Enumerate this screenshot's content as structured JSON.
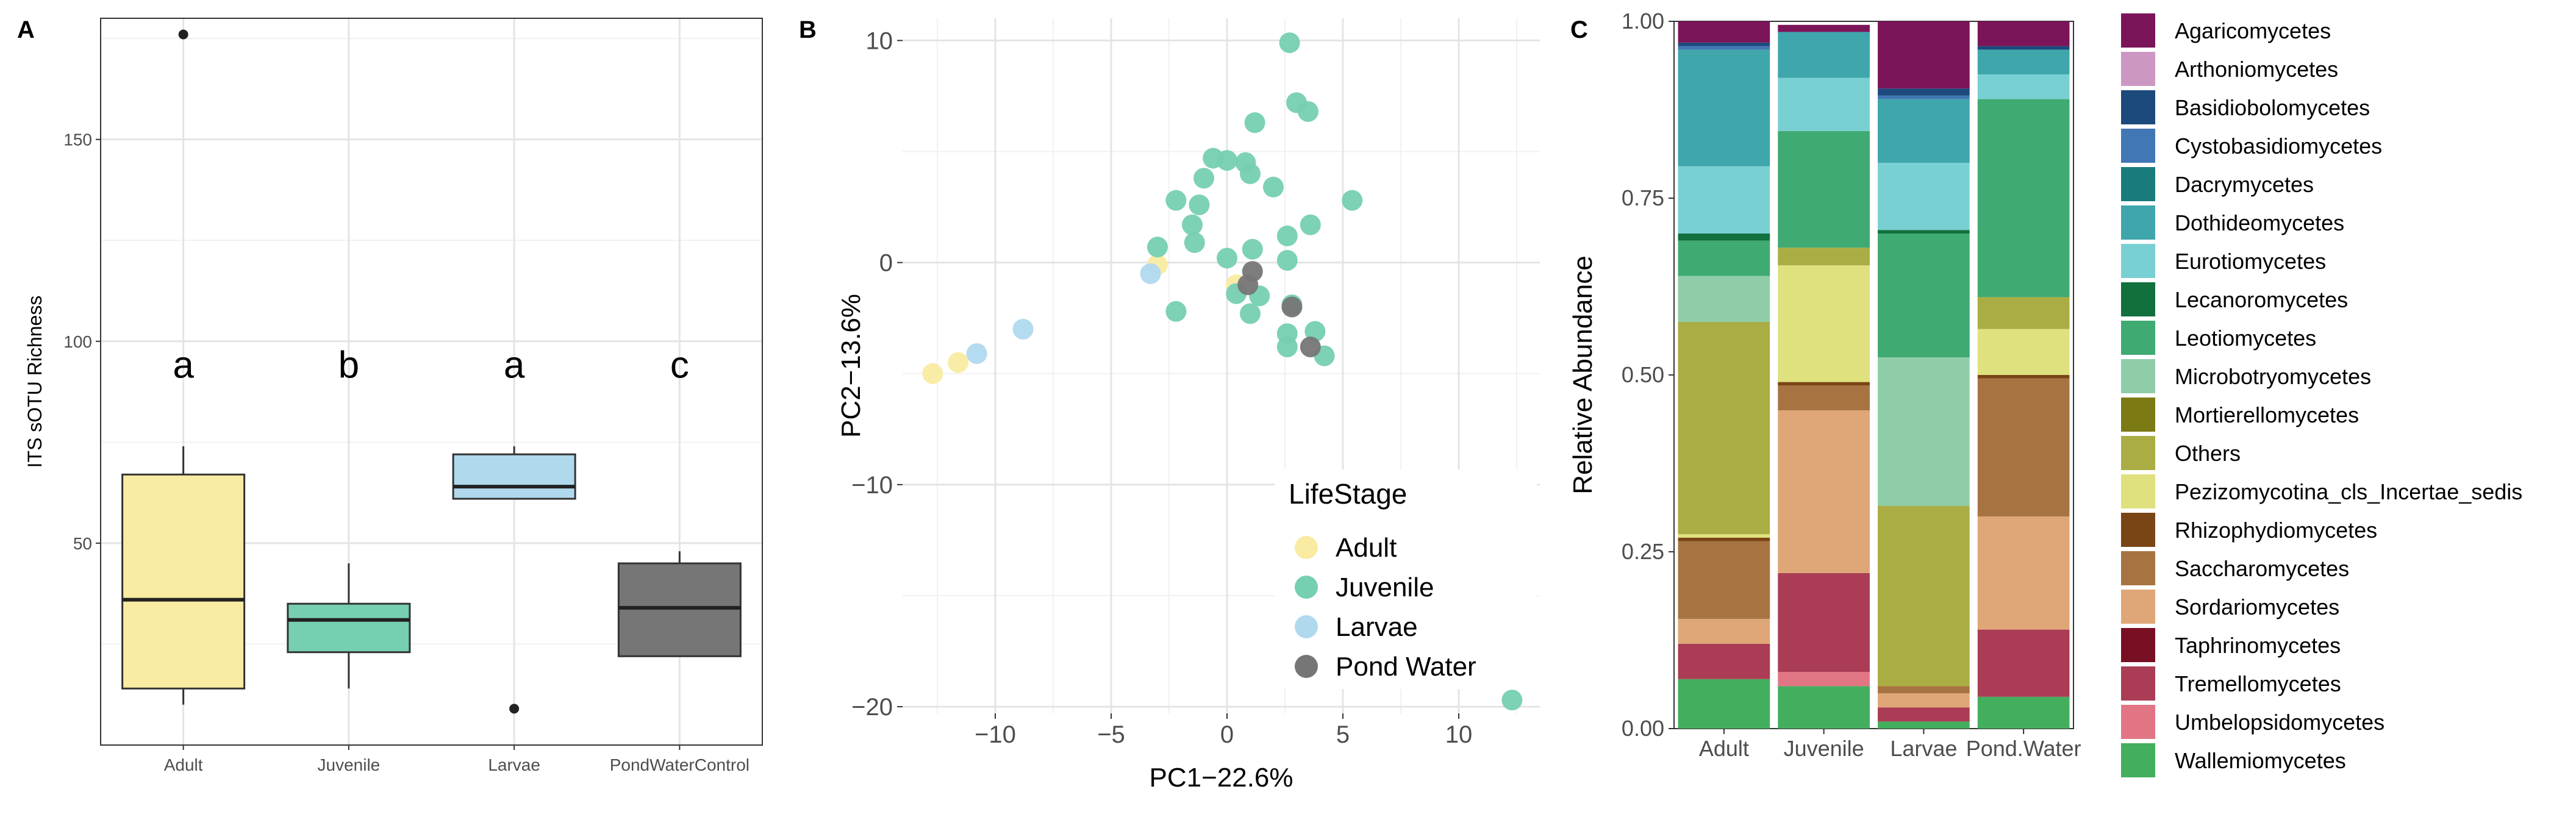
{
  "panels": {
    "a": {
      "label": "A"
    },
    "b": {
      "label": "B"
    },
    "c": {
      "label": "C"
    }
  },
  "colors": {
    "Adult": "#f9eba2",
    "Juvenile": "#76cfb1",
    "Larvae": "#b0d9ee",
    "PondWaterControl": "#767676",
    "Pond Water": "#767676"
  },
  "chart_data": [
    {
      "id": "A",
      "type": "box",
      "ylabel": "ITS sOTU Richness",
      "xlabel": "",
      "ylim": [
        0,
        180
      ],
      "yticks": [
        50,
        100,
        150
      ],
      "categories": [
        "Adult",
        "Juvenile",
        "Larvae",
        "PondWaterControl"
      ],
      "boxes": [
        {
          "name": "Adult",
          "whisker_low": 10,
          "q1": 14,
          "median": 36,
          "q3": 67,
          "whisker_high": 74,
          "outliers": [
            176
          ],
          "letter": "a"
        },
        {
          "name": "Juvenile",
          "whisker_low": 14,
          "q1": 23,
          "median": 31,
          "q3": 35,
          "whisker_high": 45,
          "outliers": [],
          "letter": "b"
        },
        {
          "name": "Larvae",
          "whisker_low": 61,
          "q1": 61,
          "median": 64,
          "q3": 72,
          "whisker_high": 74,
          "outliers": [
            9
          ],
          "letter": "a"
        },
        {
          "name": "PondWaterControl",
          "whisker_low": 22,
          "q1": 22,
          "median": 34,
          "q3": 45,
          "whisker_high": 48,
          "outliers": [],
          "letter": "c"
        }
      ]
    },
    {
      "id": "B",
      "type": "scatter",
      "xlabel": "PC1−22.6%",
      "ylabel": "PC2−13.6%",
      "xlim": [
        -14,
        13.5
      ],
      "ylim": [
        -20.3,
        11
      ],
      "xticks": [
        -10,
        -5,
        0,
        5,
        10
      ],
      "yticks": [
        -20,
        -10,
        0,
        10
      ],
      "legend": {
        "title": "LifeStage",
        "position": "bottom-right",
        "entries": [
          "Adult",
          "Juvenile",
          "Larvae",
          "Pond Water"
        ]
      },
      "series": [
        {
          "name": "Adult",
          "points": [
            [
              -12.7,
              -5.0
            ],
            [
              -11.6,
              -4.5
            ],
            [
              -3.0,
              -0.1
            ],
            [
              0.4,
              -1.0
            ]
          ]
        },
        {
          "name": "Juvenile",
          "points": [
            [
              2.7,
              9.9
            ],
            [
              3.0,
              7.2
            ],
            [
              3.5,
              6.8
            ],
            [
              1.2,
              6.3
            ],
            [
              -0.6,
              4.7
            ],
            [
              0.0,
              4.6
            ],
            [
              0.8,
              4.5
            ],
            [
              -1.0,
              3.8
            ],
            [
              1.0,
              4.0
            ],
            [
              2.0,
              3.4
            ],
            [
              -2.2,
              2.8
            ],
            [
              -1.2,
              2.6
            ],
            [
              5.4,
              2.8
            ],
            [
              3.6,
              1.7
            ],
            [
              -1.5,
              1.7
            ],
            [
              2.6,
              1.2
            ],
            [
              -3.0,
              0.7
            ],
            [
              -1.4,
              0.9
            ],
            [
              0.0,
              0.2
            ],
            [
              1.1,
              0.6
            ],
            [
              2.6,
              0.1
            ],
            [
              0.4,
              -1.4
            ],
            [
              1.4,
              -1.5
            ],
            [
              2.8,
              -1.9
            ],
            [
              -2.2,
              -2.2
            ],
            [
              1.0,
              -2.3
            ],
            [
              2.6,
              -3.2
            ],
            [
              3.8,
              -3.1
            ],
            [
              2.6,
              -3.8
            ],
            [
              4.2,
              -4.2
            ],
            [
              12.3,
              -19.7
            ]
          ]
        },
        {
          "name": "Larvae",
          "points": [
            [
              -10.8,
              -4.1
            ],
            [
              -8.8,
              -3.0
            ],
            [
              -3.3,
              -0.5
            ]
          ]
        },
        {
          "name": "Pond Water",
          "points": [
            [
              1.1,
              -0.4
            ],
            [
              0.9,
              -1.0
            ],
            [
              2.8,
              -2.0
            ],
            [
              3.6,
              -3.8
            ]
          ]
        }
      ]
    },
    {
      "id": "C",
      "type": "stacked-bar",
      "ylabel": "Relative Abundance",
      "xlabel": "",
      "ylim": [
        0,
        1
      ],
      "yticks": [
        "0.00",
        "0.25",
        "0.50",
        "0.75",
        "1.00"
      ],
      "categories": [
        "Adult",
        "Juvenile",
        "Larvae",
        "Pond.Water"
      ],
      "taxa": [
        {
          "name": "Agaricomycetes",
          "color": "#7c1459"
        },
        {
          "name": "Arthoniomycetes",
          "color": "#cc98c3"
        },
        {
          "name": "Basidiobolomycetes",
          "color": "#1c4a7d"
        },
        {
          "name": "Cystobasidiomycetes",
          "color": "#4277b5"
        },
        {
          "name": "Dacrymycetes",
          "color": "#187c7c"
        },
        {
          "name": "Dothideomycetes",
          "color": "#3fa6ac"
        },
        {
          "name": "Eurotiomycetes",
          "color": "#79d0d2"
        },
        {
          "name": "Lecanoromycetes",
          "color": "#11703d"
        },
        {
          "name": "Leotiomycetes",
          "color": "#3faa72"
        },
        {
          "name": "Microbotryomycetes",
          "color": "#8fcda8"
        },
        {
          "name": "Mortierellomycetes",
          "color": "#7b7a13"
        },
        {
          "name": "Others",
          "color": "#aaad43"
        },
        {
          "name": "Pezizomycotina_cls_Incertae_sedis",
          "color": "#dfe07e"
        },
        {
          "name": "Rhizophydiomycetes",
          "color": "#7a4515"
        },
        {
          "name": "Saccharomycetes",
          "color": "#a77441"
        },
        {
          "name": "Sordariomycetes",
          "color": "#dfa777"
        },
        {
          "name": "Taphrinomycetes",
          "color": "#780f23"
        },
        {
          "name": "Tremellomycetes",
          "color": "#aa3d55"
        },
        {
          "name": "Umbelopsidomycetes",
          "color": "#e27584"
        },
        {
          "name": "Wallemiomycetes",
          "color": "#44ae5f"
        }
      ],
      "series": [
        {
          "name": "Wallemiomycetes",
          "values": [
            0.07,
            0.06,
            0.01,
            0.045
          ]
        },
        {
          "name": "Umbelopsidomycetes",
          "values": [
            0.0,
            0.02,
            0.0,
            0.0
          ]
        },
        {
          "name": "Tremellomycetes",
          "values": [
            0.05,
            0.14,
            0.02,
            0.095
          ]
        },
        {
          "name": "Taphrinomycetes",
          "values": [
            0.0,
            0.0,
            0.0,
            0.0
          ]
        },
        {
          "name": "Sordariomycetes",
          "values": [
            0.035,
            0.23,
            0.02,
            0.16
          ]
        },
        {
          "name": "Saccharomycetes",
          "values": [
            0.11,
            0.035,
            0.01,
            0.195
          ]
        },
        {
          "name": "Rhizophydiomycetes",
          "values": [
            0.005,
            0.005,
            0.0,
            0.005
          ]
        },
        {
          "name": "Pezizomycotina_cls_Incertae_sedis",
          "values": [
            0.005,
            0.165,
            0.0,
            0.065
          ]
        },
        {
          "name": "Others",
          "values": [
            0.3,
            0.025,
            0.255,
            0.045
          ]
        },
        {
          "name": "Mortierellomycetes",
          "values": [
            0.0,
            0.0,
            0.0,
            0.0
          ]
        },
        {
          "name": "Microbotryomycetes",
          "values": [
            0.065,
            0.0,
            0.21,
            0.0
          ]
        },
        {
          "name": "Leotiomycetes",
          "values": [
            0.05,
            0.165,
            0.175,
            0.28
          ]
        },
        {
          "name": "Lecanoromycetes",
          "values": [
            0.01,
            0.0,
            0.005,
            0.0
          ]
        },
        {
          "name": "Eurotiomycetes",
          "values": [
            0.095,
            0.075,
            0.095,
            0.035
          ]
        },
        {
          "name": "Dothideomycetes",
          "values": [
            0.165,
            0.065,
            0.09,
            0.035
          ]
        },
        {
          "name": "Dacrymycetes",
          "values": [
            0.0,
            0.0,
            0.0,
            0.0
          ]
        },
        {
          "name": "Cystobasidiomycetes",
          "values": [
            0.005,
            0.0,
            0.005,
            0.0
          ]
        },
        {
          "name": "Basidiobolomycetes",
          "values": [
            0.005,
            0.0,
            0.01,
            0.005
          ]
        },
        {
          "name": "Arthoniomycetes",
          "values": [
            0.0,
            0.0,
            0.0,
            0.0
          ]
        },
        {
          "name": "Agaricomycetes",
          "values": [
            0.03,
            0.01,
            0.095,
            0.035
          ]
        }
      ]
    }
  ]
}
